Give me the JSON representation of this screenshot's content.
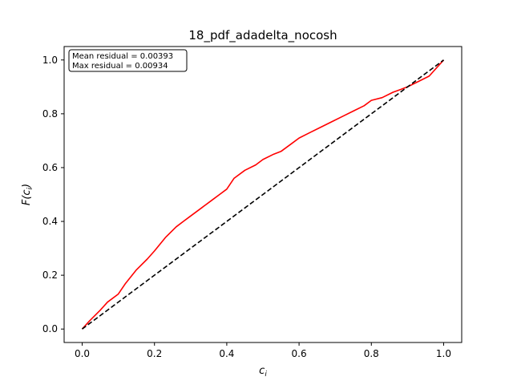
{
  "chart_data": {
    "type": "line",
    "title": "18_pdf_adadelta_nocosh",
    "xlabel": "c",
    "xlabel_sub": "i",
    "ylabel_prefix": "F(c",
    "ylabel_sub": "i",
    "ylabel_suffix": ")",
    "xlim": [
      -0.05,
      1.05
    ],
    "ylim": [
      -0.05,
      1.05
    ],
    "xticks": [
      0.0,
      0.2,
      0.4,
      0.6,
      0.8,
      1.0
    ],
    "xtick_labels": [
      "0.0",
      "0.2",
      "0.4",
      "0.6",
      "0.8",
      "1.0"
    ],
    "yticks": [
      0.0,
      0.2,
      0.4,
      0.6,
      0.8,
      1.0
    ],
    "ytick_labels": [
      "0.0",
      "0.2",
      "0.4",
      "0.6",
      "0.8",
      "1.0"
    ],
    "grid": false,
    "annotation": {
      "lines": [
        "Mean residual = 0.00393",
        "Max residual = 0.00934"
      ],
      "placement": "top-left"
    },
    "series": [
      {
        "style": "solid",
        "color": "#ff0000",
        "x": [
          0.0,
          0.02,
          0.05,
          0.07,
          0.1,
          0.12,
          0.15,
          0.18,
          0.2,
          0.23,
          0.26,
          0.28,
          0.3,
          0.33,
          0.36,
          0.38,
          0.4,
          0.42,
          0.45,
          0.48,
          0.5,
          0.53,
          0.55,
          0.58,
          0.6,
          0.63,
          0.66,
          0.69,
          0.72,
          0.75,
          0.78,
          0.8,
          0.83,
          0.86,
          0.88,
          0.9,
          0.93,
          0.96,
          1.0
        ],
        "y": [
          0.0,
          0.03,
          0.07,
          0.1,
          0.13,
          0.17,
          0.22,
          0.26,
          0.29,
          0.34,
          0.38,
          0.4,
          0.42,
          0.45,
          0.48,
          0.5,
          0.52,
          0.56,
          0.59,
          0.61,
          0.63,
          0.65,
          0.66,
          0.69,
          0.71,
          0.73,
          0.75,
          0.77,
          0.79,
          0.81,
          0.83,
          0.85,
          0.86,
          0.88,
          0.89,
          0.9,
          0.92,
          0.94,
          1.0
        ]
      },
      {
        "style": "dashed",
        "color": "#000000",
        "x": [
          0.0,
          1.0
        ],
        "y": [
          0.0,
          1.0
        ]
      }
    ]
  }
}
